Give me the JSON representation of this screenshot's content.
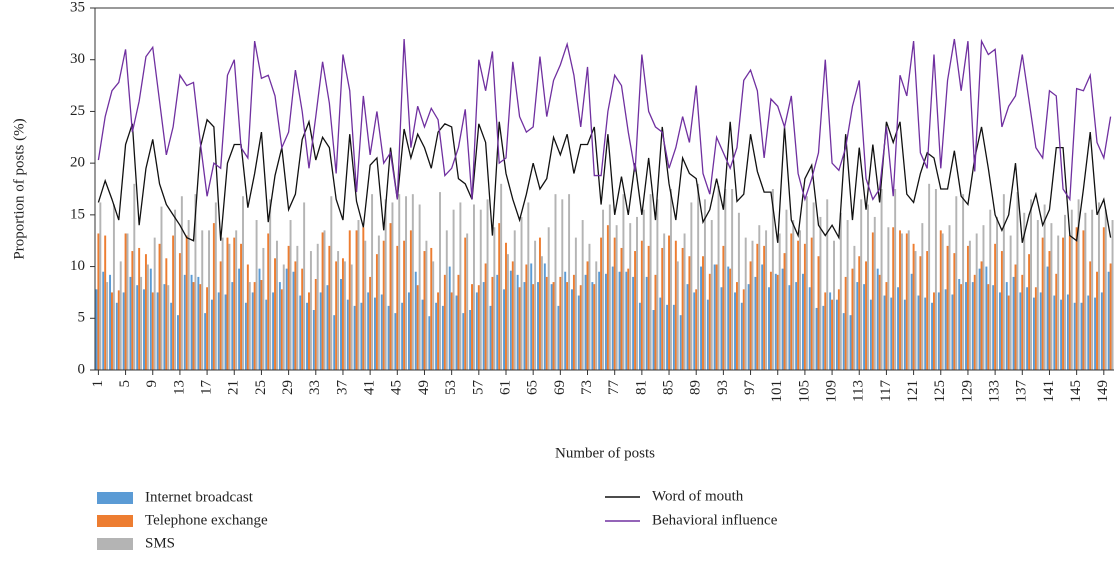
{
  "chart_data": {
    "type": "bar",
    "y_label": "Proportion of posts (%)",
    "x_label": "Number of posts",
    "ylim": [
      0,
      35
    ],
    "yticks": [
      0,
      5,
      10,
      15,
      20,
      25,
      30,
      35
    ],
    "categories": [
      "1",
      null,
      null,
      null,
      "5",
      null,
      null,
      null,
      "9",
      null,
      null,
      null,
      "13",
      null,
      null,
      null,
      "17",
      null,
      null,
      null,
      "21",
      null,
      null,
      null,
      "25",
      null,
      null,
      null,
      "29",
      null,
      null,
      null,
      "33",
      null,
      null,
      null,
      "37",
      null,
      null,
      null,
      "41",
      null,
      null,
      null,
      "45",
      null,
      null,
      null,
      "49",
      null,
      null,
      null,
      "53",
      null,
      null,
      null,
      "57",
      null,
      null,
      null,
      "61",
      null,
      null,
      null,
      "65",
      null,
      null,
      null,
      "69",
      null,
      null,
      null,
      "73",
      null,
      null,
      null,
      "77",
      null,
      null,
      null,
      "81",
      null,
      null,
      null,
      "85",
      null,
      null,
      null,
      "89",
      null,
      null,
      null,
      "93",
      null,
      null,
      null,
      "97",
      null,
      null,
      null,
      "101",
      null,
      null,
      null,
      "105",
      null,
      null,
      null,
      "109",
      null,
      null,
      null,
      "113",
      null,
      null,
      null,
      "117",
      null,
      null,
      null,
      "121",
      null,
      null,
      null,
      "125",
      null,
      null,
      null,
      "129",
      null,
      null,
      null,
      "133",
      null,
      null,
      null,
      "137",
      null,
      null,
      null,
      "141",
      null,
      null,
      null,
      "145",
      null,
      null,
      null,
      "149",
      null
    ],
    "series": [
      {
        "name": "Internet broadcast",
        "type": "bar",
        "color": "#5b9bd5",
        "values": [
          7.8,
          9.5,
          9.2,
          6.5,
          7.5,
          9.0,
          8.2,
          7.8,
          9.8,
          7.5,
          8.3,
          6.5,
          5.3,
          9.2,
          9.2,
          9.0,
          5.5,
          6.8,
          7.5,
          7.3,
          8.5,
          9.8,
          6.5,
          7.5,
          9.8,
          6.8,
          7.5,
          8.5,
          9.8,
          9.5,
          7.2,
          6.5,
          5.8,
          7.5,
          8.2,
          5.3,
          8.8,
          6.8,
          6.2,
          6.5,
          7.5,
          7.0,
          7.3,
          6.2,
          5.5,
          6.5,
          7.5,
          9.5,
          6.8,
          5.2,
          6.5,
          6.2,
          10.0,
          7.2,
          5.5,
          5.8,
          7.5,
          8.5,
          6.2,
          9.2,
          7.8,
          9.6,
          9.2,
          8.5,
          10.3,
          8.5,
          10.3,
          8.3,
          6.2,
          9.5,
          7.8,
          7.2,
          9.2,
          8.5,
          9.5,
          9.3,
          10.0,
          9.5,
          9.5,
          9.0,
          6.5,
          9.0,
          5.8,
          7.0,
          6.3,
          6.3,
          5.3,
          8.3,
          7.5,
          10.0,
          6.8,
          10.2,
          8.0,
          10.0,
          7.5,
          6.5,
          8.3,
          9.0,
          10.2,
          8.0,
          9.3,
          9.8,
          8.2,
          8.5,
          9.3,
          8.0,
          6.0,
          6.2,
          7.5,
          6.8,
          5.5,
          5.3,
          8.5,
          8.3,
          6.8,
          9.8,
          7.2,
          7.0,
          8.0,
          6.8,
          9.3,
          7.2,
          7.0,
          6.5,
          7.5,
          7.8,
          7.3,
          8.8,
          8.5,
          8.5,
          9.8,
          10.0,
          8.2,
          7.5,
          8.5,
          9.0,
          7.5,
          8.0,
          7.0,
          7.5,
          10.0,
          7.2,
          6.8,
          7.3,
          6.5,
          6.5,
          7.2,
          7.0,
          7.5,
          9.5
        ]
      },
      {
        "name": "Telephone exchange",
        "type": "bar",
        "color": "#ed7d31",
        "values": [
          13.2,
          13.0,
          7.5,
          7.7,
          13.2,
          11.5,
          11.8,
          11.2,
          7.5,
          12.2,
          10.8,
          13.0,
          11.3,
          13.0,
          8.5,
          8.3,
          8.0,
          14.2,
          10.5,
          12.8,
          12.8,
          12.2,
          10.2,
          8.5,
          8.7,
          13.2,
          10.8,
          7.8,
          12.0,
          10.5,
          9.8,
          7.5,
          8.8,
          13.3,
          12.0,
          10.5,
          10.8,
          13.5,
          13.5,
          13.8,
          9.0,
          11.2,
          12.5,
          14.2,
          12.0,
          12.5,
          13.5,
          8.2,
          11.5,
          11.8,
          7.5,
          9.2,
          7.5,
          9.2,
          12.8,
          8.3,
          8.2,
          10.3,
          9.0,
          14.2,
          12.3,
          10.5,
          8.0,
          10.2,
          8.3,
          12.8,
          9.0,
          8.5,
          9.0,
          8.5,
          9.2,
          8.2,
          10.5,
          8.3,
          12.8,
          14.0,
          12.8,
          11.8,
          9.8,
          11.5,
          12.5,
          12.0,
          9.2,
          11.8,
          13.0,
          12.5,
          11.8,
          11.0,
          7.8,
          11.0,
          9.3,
          10.2,
          12.0,
          9.8,
          8.5,
          7.8,
          10.5,
          12.2,
          12.0,
          9.5,
          9.2,
          11.3,
          13.2,
          12.5,
          12.2,
          12.8,
          11.0,
          7.5,
          6.8,
          7.8,
          9.0,
          9.8,
          11.0,
          10.5,
          13.3,
          9.2,
          8.5,
          13.8,
          13.5,
          13.2,
          12.2,
          11.0,
          11.5,
          7.5,
          13.5,
          12.0,
          11.3,
          8.3,
          12.0,
          9.2,
          10.5,
          8.3,
          12.2,
          11.5,
          7.2,
          10.2,
          9.2,
          11.2,
          8.0,
          12.8,
          11.5,
          9.3,
          12.8,
          13.0,
          13.8,
          13.5,
          10.5,
          9.5,
          13.8,
          10.3
        ]
      },
      {
        "name": "SMS",
        "type": "bar",
        "color": "#b4b4b4",
        "values": [
          16.2,
          8.5,
          16.0,
          10.5,
          13.2,
          18.0,
          9.0,
          10.2,
          12.8,
          15.8,
          8.2,
          15.5,
          16.8,
          14.5,
          17.0,
          13.5,
          13.5,
          16.2,
          12.8,
          12.2,
          13.5,
          16.8,
          8.5,
          14.5,
          11.8,
          16.5,
          12.5,
          10.2,
          14.5,
          12.0,
          16.2,
          11.5,
          12.2,
          13.5,
          16.8,
          11.5,
          10.5,
          10.2,
          14.5,
          12.5,
          17.0,
          13.0,
          16.5,
          16.2,
          17.0,
          16.8,
          17.0,
          16.0,
          12.5,
          10.5,
          17.2,
          13.5,
          15.5,
          16.2,
          13.2,
          16.0,
          15.5,
          16.5,
          13.8,
          18.0,
          11.2,
          13.5,
          14.8,
          16.2,
          12.5,
          11.0,
          13.8,
          17.0,
          16.5,
          17.0,
          12.8,
          14.5,
          12.2,
          10.5,
          15.5,
          16.0,
          14.0,
          17.0,
          14.2,
          14.8,
          15.5,
          17.0,
          16.5,
          13.2,
          17.5,
          10.5,
          13.2,
          16.2,
          18.0,
          16.5,
          14.5,
          17.8,
          17.5,
          17.5,
          15.2,
          12.8,
          12.5,
          14.0,
          13.5,
          17.5,
          13.2,
          15.5,
          14.5,
          13.5,
          16.8,
          16.2,
          14.8,
          16.5,
          12.5,
          15.2,
          14.5,
          12.0,
          16.5,
          16.0,
          14.8,
          17.5,
          13.8,
          17.5,
          13.2,
          13.5,
          11.5,
          14.2,
          18.0,
          17.5,
          13.2,
          14.0,
          16.8,
          17.0,
          12.5,
          13.2,
          14.0,
          15.5,
          14.8,
          17.0,
          13.0,
          17.2,
          15.2,
          16.5,
          14.5,
          16.0,
          14.2,
          13.0,
          15.0,
          15.5,
          16.5,
          15.2,
          15.5,
          16.2,
          15.5,
          14.5
        ]
      },
      {
        "name": "Word of mouth",
        "type": "line",
        "color": "#111111",
        "values": [
          16.2,
          18.3,
          16.5,
          14.5,
          21.8,
          23.8,
          14.0,
          19.5,
          22.3,
          18.0,
          16.0,
          15.0,
          14.0,
          12.8,
          12.5,
          21.5,
          24.2,
          23.5,
          12.5,
          20.0,
          21.8,
          21.8,
          15.7,
          19.0,
          23.0,
          14.3,
          18.8,
          21.5,
          15.5,
          17.0,
          22.3,
          24.0,
          20.3,
          22.5,
          21.5,
          16.5,
          14.5,
          22.8,
          16.3,
          13.8,
          19.8,
          20.5,
          13.5,
          21.5,
          16.5,
          23.3,
          20.5,
          22.8,
          21.5,
          19.5,
          23.0,
          23.8,
          23.5,
          18.5,
          18.0,
          16.5,
          23.8,
          22.0,
          13.0,
          24.0,
          19.0,
          16.5,
          14.5,
          17.0,
          20.0,
          17.5,
          18.5,
          22.5,
          20.8,
          22.8,
          19.0,
          21.8,
          21.8,
          23.5,
          16.0,
          22.8,
          15.0,
          18.7,
          15.0,
          20.0,
          15.0,
          20.5,
          14.5,
          23.5,
          18.0,
          14.5,
          20.5,
          19.0,
          18.5,
          14.3,
          15.5,
          18.5,
          15.5,
          24.0,
          16.3,
          17.0,
          22.8,
          19.2,
          17.2,
          17.2,
          12.3,
          23.5,
          14.5,
          13.0,
          18.5,
          19.8,
          14.0,
          13.0,
          14.0,
          12.8,
          22.8,
          14.5,
          21.5,
          15.5,
          21.8,
          16.2,
          24.0,
          22.0,
          24.0,
          17.0,
          16.2,
          19.0,
          21.0,
          20.5,
          17.5,
          17.5,
          21.2,
          16.8,
          16.0,
          20.5,
          23.5,
          19.5,
          15.0,
          13.5,
          15.0,
          20.0,
          12.3,
          15.0,
          17.0,
          14.0,
          15.5,
          21.5,
          21.5,
          13.0,
          12.5,
          17.5,
          23.0,
          15.0,
          16.5,
          12.8
        ]
      },
      {
        "name": "Behavioral influence",
        "type": "line",
        "color": "#7030a0",
        "values": [
          20.3,
          24.5,
          27.0,
          27.8,
          31.0,
          23.0,
          26.0,
          30.3,
          31.2,
          26.0,
          20.8,
          23.5,
          28.5,
          27.5,
          27.8,
          22.0,
          16.8,
          20.0,
          19.5,
          28.5,
          30.0,
          21.5,
          20.5,
          31.8,
          28.2,
          28.5,
          26.5,
          21.5,
          23.0,
          29.0,
          25.0,
          19.5,
          24.5,
          29.8,
          25.8,
          19.0,
          30.5,
          27.0,
          17.2,
          26.5,
          20.8,
          25.0,
          20.0,
          21.0,
          16.5,
          32.0,
          21.5,
          25.5,
          23.5,
          25.3,
          24.2,
          18.8,
          19.5,
          21.5,
          25.2,
          16.5,
          30.0,
          27.0,
          30.8,
          20.0,
          20.5,
          29.8,
          24.5,
          23.0,
          23.5,
          30.3,
          24.5,
          28.0,
          29.5,
          31.5,
          28.5,
          23.5,
          29.3,
          18.8,
          18.8,
          25.0,
          28.5,
          27.5,
          23.0,
          19.2,
          30.5,
          25.0,
          23.5,
          23.0,
          19.5,
          21.5,
          24.5,
          22.0,
          27.5,
          19.0,
          17.0,
          22.5,
          21.0,
          19.5,
          21.5,
          28.0,
          29.0,
          27.0,
          20.5,
          26.2,
          25.5,
          23.5,
          26.5,
          19.0,
          16.5,
          18.5,
          21.0,
          30.0,
          20.0,
          19.3,
          21.5,
          25.5,
          28.0,
          18.5,
          16.5,
          17.5,
          23.5,
          16.8,
          28.5,
          26.5,
          31.8,
          21.0,
          19.5,
          30.5,
          19.5,
          28.0,
          32.0,
          27.0,
          31.8,
          19.2,
          31.8,
          30.5,
          31.0,
          23.5,
          25.5,
          26.5,
          30.5,
          26.0,
          21.5,
          20.5,
          27.0,
          26.5,
          17.5,
          16.5,
          27.2,
          27.0,
          28.5,
          22.0,
          20.5,
          24.5
        ]
      }
    ]
  }
}
